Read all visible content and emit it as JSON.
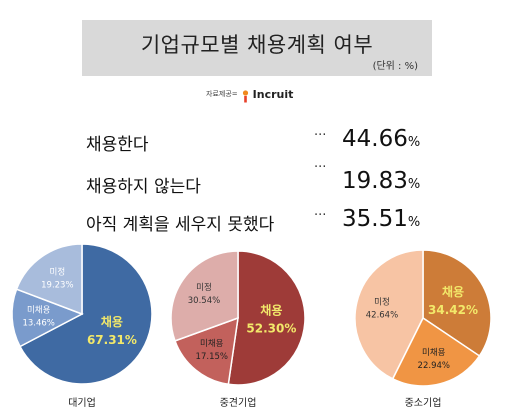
{
  "header": {
    "title": "기업규모별 채용계획 여부",
    "unit": "(단위 : %)"
  },
  "source": {
    "label": "자료제공=",
    "logo_text": "Incruit"
  },
  "summary": [
    {
      "label": "채용한다",
      "dots": "···",
      "value": "44.66",
      "pct": "%"
    },
    {
      "label": "채용하지 않는다",
      "dots": "···",
      "value": "19.83",
      "pct": "%"
    },
    {
      "label": "아직 계획을 세우지 못했다",
      "dots": "···",
      "value": "35.51",
      "pct": "%"
    }
  ],
  "chart_data": [
    {
      "type": "pie",
      "title": "대기업",
      "slices": [
        {
          "name": "채용",
          "value": 67.31,
          "color": "#3f6aa3",
          "label_color": "#f2e86a"
        },
        {
          "name": "미채용",
          "value": 13.46,
          "color": "#7a9bcc",
          "label_color": "#ffffff"
        },
        {
          "name": "미정",
          "value": 19.23,
          "color": "#a8bcdc",
          "label_color": "#ffffff"
        }
      ]
    },
    {
      "type": "pie",
      "title": "중견기업",
      "slices": [
        {
          "name": "채용",
          "value": 52.3,
          "color": "#9e3b38",
          "label_color": "#f2e86a"
        },
        {
          "name": "미채용",
          "value": 17.15,
          "color": "#c2615c",
          "label_color": "#222222"
        },
        {
          "name": "미정",
          "value": 30.54,
          "color": "#ddadaa",
          "label_color": "#333333"
        }
      ]
    },
    {
      "type": "pie",
      "title": "중소기업",
      "slices": [
        {
          "name": "채용",
          "value": 34.42,
          "color": "#cd7c38",
          "label_color": "#f2e86a"
        },
        {
          "name": "미채용",
          "value": 22.94,
          "color": "#f09544",
          "label_color": "#222222"
        },
        {
          "name": "미정",
          "value": 42.64,
          "color": "#f7c4a4",
          "label_color": "#333333"
        }
      ]
    }
  ]
}
